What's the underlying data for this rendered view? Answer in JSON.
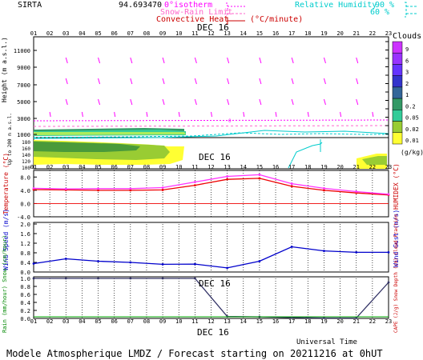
{
  "header": {
    "site": "SIRTA",
    "coords": "94.6934",
    "coords_overlap": "70",
    "legend_lines": [
      "0°isotherm",
      "Snow-Rain Limit",
      "Convective Heat"
    ],
    "convective_unit": "(°C/minute)",
    "humidity_label": "Relative Humidity",
    "humidity_levels": [
      "90 %",
      "60 %"
    ],
    "colors": {
      "isotherm": "#ff00ff",
      "snow_rain": "#ff66cc",
      "convective": "#cc0000",
      "humidity": "#00cccc"
    }
  },
  "hours": [
    "01",
    "02",
    "03",
    "04",
    "05",
    "06",
    "07",
    "08",
    "09",
    "10",
    "11",
    "12",
    "13",
    "14",
    "15",
    "16",
    "17",
    "18",
    "19",
    "20",
    "21",
    "22",
    "23"
  ],
  "day_label": "DEC 16",
  "footer": {
    "utc": "Universal Time",
    "caption": "Modele Atmospherique LMDZ / Forecast starting on 20211216 at 0hUT"
  },
  "clouds_legend": {
    "title": "Clouds",
    "unit": "(g/kg)",
    "levels": [
      "9",
      "6",
      "3",
      "2",
      "1",
      "0.2",
      "0.05",
      "0.02",
      "0.01"
    ],
    "colors": [
      "#cc33ff",
      "#9933ff",
      "#6633ff",
      "#3333cc",
      "#336699",
      "#339966",
      "#33cc99",
      "#99cc33",
      "#ffff33"
    ]
  },
  "panels": {
    "height": {
      "ylabel": "Height (m a.s.l.)",
      "ylabel_low": "Up to 200 m a.s.l.",
      "ticks_upper": [
        "11000",
        "9000",
        "7000",
        "5000",
        "3000",
        "1000"
      ],
      "ticks_mid": [
        "10000",
        "8000",
        "6000",
        "4000",
        "2000",
        "1000"
      ],
      "ticks_lower": [
        "180",
        "160",
        "140",
        "120",
        "100"
      ],
      "isotherm_label": "0"
    },
    "temperature": {
      "ylabel": "Temperature (°C)",
      "ylabel_right": "HUMIDEX (°C)",
      "ticks": [
        "8.0",
        "4.0",
        "0.0",
        "-4.0"
      ]
    },
    "wind": {
      "ylabel": "Wind Speed (m/s)",
      "ylabel_right": "Wind Gust (m/s)",
      "ticks": [
        "2.0",
        "1.6",
        "1.2",
        "0.8",
        "0.4",
        "0.0"
      ]
    },
    "precip": {
      "ylabel": "Rain (mm/hour) Snow (cm/hour)",
      "ylabel_right": "CAPE (J/g) Snow Depth (cm) Cloud Fraction",
      "ticks": [
        "1.0",
        "0.8",
        "0.6",
        "0.4",
        "0.2",
        "0.0"
      ]
    }
  },
  "chart_data": [
    {
      "type": "line",
      "title": "Temperature",
      "x": [
        "01",
        "03",
        "05",
        "07",
        "09",
        "11",
        "13",
        "15",
        "17",
        "19",
        "21",
        "23"
      ],
      "series": [
        {
          "name": "Temperature",
          "color": "#ee0000",
          "values": [
            4.2,
            4.1,
            4.0,
            4.0,
            4.1,
            5.5,
            7.3,
            7.6,
            5.2,
            4.0,
            3.2,
            2.6
          ]
        },
        {
          "name": "HUMIDEX",
          "color": "#ff33ff",
          "values": [
            4.6,
            4.4,
            4.5,
            4.5,
            4.8,
            6.5,
            8.2,
            8.7,
            6.0,
            4.6,
            3.6,
            2.8
          ]
        }
      ],
      "ylim": [
        -4,
        10
      ],
      "ylabel": "Temperature (°C)"
    },
    {
      "type": "line",
      "title": "Wind Speed",
      "x": [
        "01",
        "03",
        "05",
        "07",
        "09",
        "11",
        "13",
        "15",
        "17",
        "19",
        "21",
        "23"
      ],
      "series": [
        {
          "name": "Wind Speed",
          "color": "#0000cc",
          "values": [
            0.35,
            0.55,
            0.45,
            0.4,
            0.32,
            0.33,
            0.17,
            0.45,
            1.05,
            0.88,
            0.82,
            0.82
          ]
        }
      ],
      "ylim": [
        0,
        2.0
      ],
      "ylabel": "Wind Speed (m/s)"
    },
    {
      "type": "line",
      "title": "Cloud Fraction",
      "x": [
        "01",
        "03",
        "05",
        "07",
        "09",
        "11",
        "13",
        "15",
        "17",
        "19",
        "21",
        "23"
      ],
      "series": [
        {
          "name": "Cloud Fraction",
          "color": "#333366",
          "values": [
            1.0,
            1.0,
            1.0,
            1.0,
            1.0,
            1.0,
            0.05,
            0.04,
            0.02,
            0.01,
            0.01,
            0.9
          ]
        }
      ],
      "ylim": [
        0,
        1.0
      ],
      "ylabel": "Rain (mm/hour) Snow (cm/hour)"
    }
  ]
}
